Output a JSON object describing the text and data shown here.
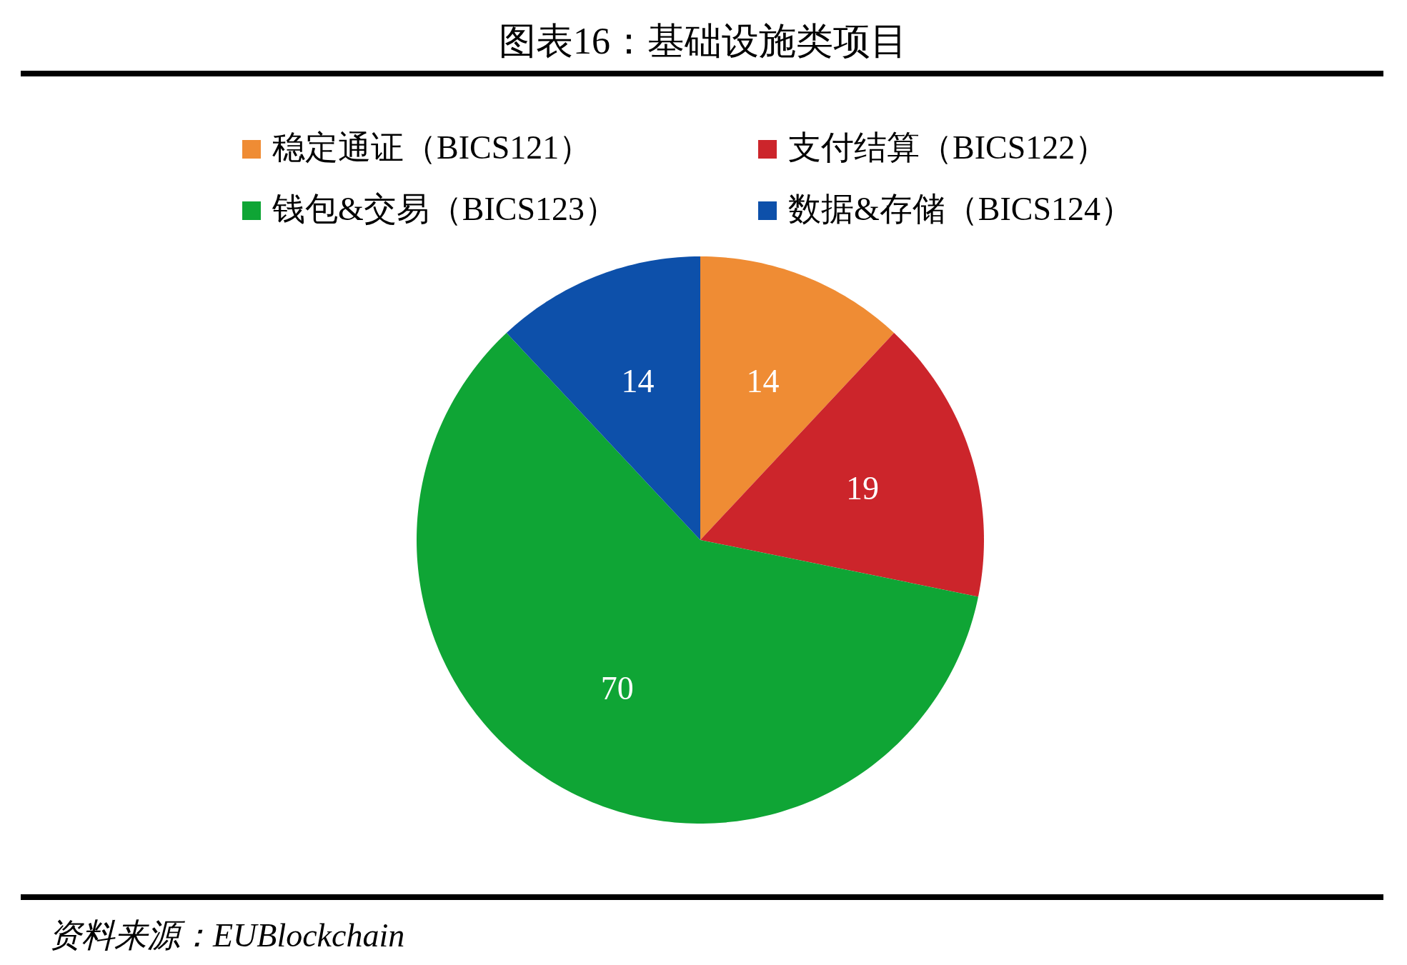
{
  "chart_data": {
    "type": "pie",
    "title": "图表16：基础设施类项目",
    "categories": [
      "稳定通证（BICS121）",
      "支付结算（BICS122）",
      "钱包&交易（BICS123）",
      "数据&存储（BICS124）"
    ],
    "values": [
      14,
      19,
      70,
      14
    ],
    "colors": [
      "#ef8c34",
      "#cc252b",
      "#0fa535",
      "#0d50aa"
    ],
    "data_labels": true,
    "legend": "top",
    "annotations": [
      "资料来源：EUBlockchain"
    ]
  }
}
